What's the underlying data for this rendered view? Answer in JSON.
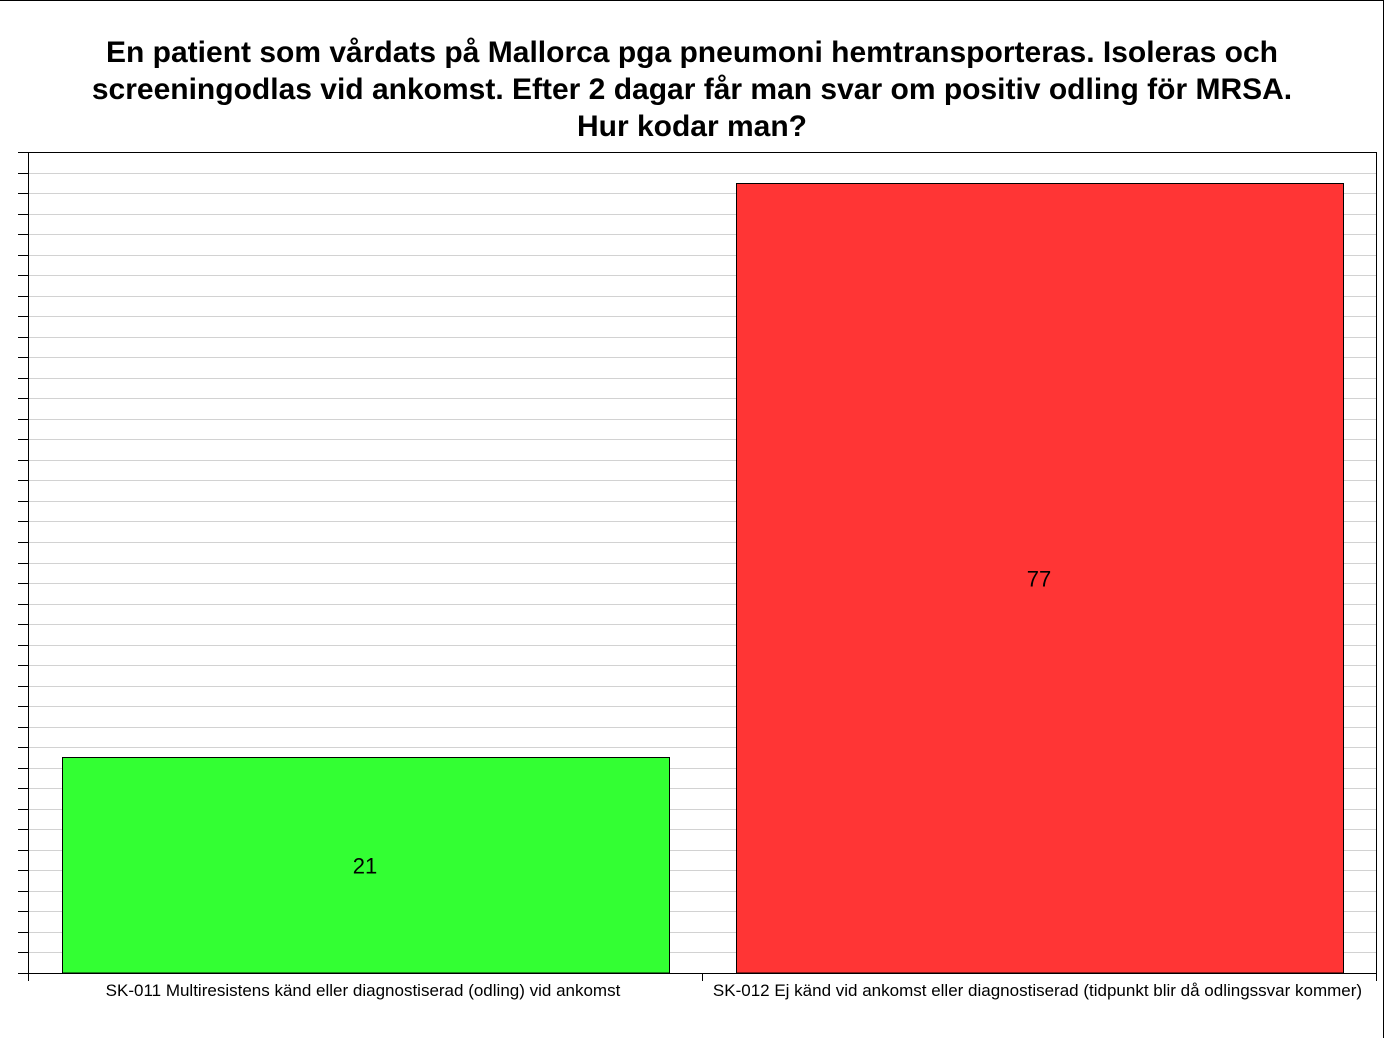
{
  "chart_data": {
    "type": "bar",
    "title_lines": [
      "En patient som vårdats på Mallorca pga pneumoni hemtransporteras. Isoleras och",
      "screeningodlas vid ankomst. Efter 2 dagar får man svar om positiv odling för MRSA.",
      "Hur kodar man?"
    ],
    "categories": [
      "SK-011 Multiresistens känd eller diagnostiserad (odling) vid ankomst",
      "SK-012 Ej känd vid ankomst eller diagnostiserad (tidpunkt blir då odlingssvar kommer)"
    ],
    "values": [
      21,
      77
    ],
    "data_labels": [
      "21",
      "77"
    ],
    "bar_colors": [
      "#33ff33",
      "#ff3535"
    ],
    "ylim": [
      0,
      80
    ],
    "grid": true,
    "xlabel": "",
    "ylabel": ""
  }
}
